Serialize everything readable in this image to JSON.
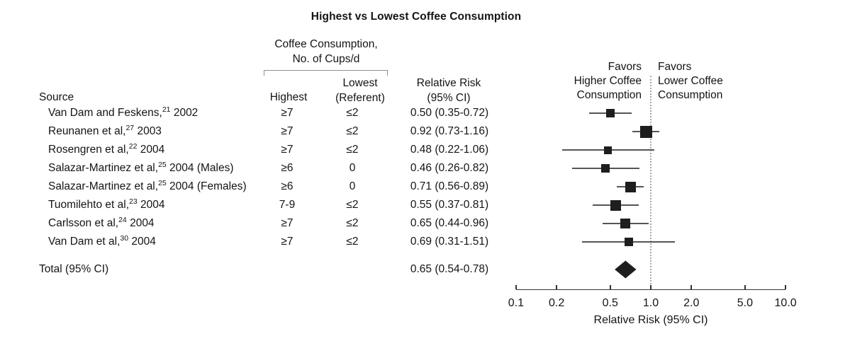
{
  "table": {
    "source_header": "Source",
    "group_header": [
      "Coffee Consumption,",
      "No. of Cups/d"
    ],
    "highest_header": "Highest",
    "lowest_header": [
      "Lowest",
      "(Referent)"
    ],
    "rr_header": [
      "Relative Risk",
      "(95% CI)"
    ]
  },
  "favors_left": [
    "Favors",
    "Higher Coffee",
    "Consumption"
  ],
  "favors_right": [
    "Favors",
    "Lower Coffee",
    "Consumption"
  ],
  "colors": {
    "text": "#141414",
    "marker": "#1e1e1e",
    "ci_line": "#555555",
    "axis": "#333333",
    "null_line_dots": "#a8a8a8"
  },
  "chart_data": {
    "type": "scatter",
    "subtype": "forest_plot",
    "title": "Highest vs Lowest Coffee Consumption",
    "xlabel": "Relative Risk (95% CI)",
    "x_scale": "log",
    "xlim": [
      0.1,
      10.0
    ],
    "x_tick_values": [
      0.1,
      0.2,
      0.5,
      1.0,
      2.0,
      5.0,
      10.0
    ],
    "x_tick_labels": [
      "0.1",
      "0.2",
      "0.5",
      "1.0",
      "2.0",
      "5.0",
      "10.0"
    ],
    "null_line": 1.0,
    "legend": "none",
    "grid": "off",
    "studies": [
      {
        "source": "Van Dam and Feskens,",
        "sup": "21",
        "tail": "2002",
        "highest": "≥7",
        "lowest": "≤2",
        "rr_text": "0.50 (0.35-0.72)",
        "rr": 0.5,
        "ci": [
          0.35,
          0.72
        ],
        "marker_size_px": 12
      },
      {
        "source": "Reunanen et al,",
        "sup": "27",
        "tail": "2003",
        "highest": "≥7",
        "lowest": "≤2",
        "rr_text": "0.92 (0.73-1.16)",
        "rr": 0.92,
        "ci": [
          0.73,
          1.16
        ],
        "marker_size_px": 17
      },
      {
        "source": "Rosengren et al,",
        "sup": "22",
        "tail": "2004",
        "highest": "≥7",
        "lowest": "≤2",
        "rr_text": "0.48 (0.22-1.06)",
        "rr": 0.48,
        "ci": [
          0.22,
          1.06
        ],
        "marker_size_px": 11
      },
      {
        "source": "Salazar-Martinez et al,",
        "sup": "25",
        "tail": "2004 (Males)",
        "highest": "≥6",
        "lowest": "0",
        "rr_text": "0.46 (0.26-0.82)",
        "rr": 0.46,
        "ci": [
          0.26,
          0.82
        ],
        "marker_size_px": 12
      },
      {
        "source": "Salazar-Martinez et al,",
        "sup": "25",
        "tail": "2004 (Females)",
        "highest": "≥6",
        "lowest": "0",
        "rr_text": "0.71 (0.56-0.89)",
        "rr": 0.71,
        "ci": [
          0.56,
          0.89
        ],
        "marker_size_px": 15
      },
      {
        "source": "Tuomilehto et al,",
        "sup": "23",
        "tail": "2004",
        "highest": "7-9",
        "lowest": "≤2",
        "rr_text": "0.55 (0.37-0.81)",
        "rr": 0.55,
        "ci": [
          0.37,
          0.81
        ],
        "marker_size_px": 15
      },
      {
        "source": "Carlsson et al,",
        "sup": "24",
        "tail": "2004",
        "highest": "≥7",
        "lowest": "≤2",
        "rr_text": "0.65 (0.44-0.96)",
        "rr": 0.65,
        "ci": [
          0.44,
          0.96
        ],
        "marker_size_px": 14
      },
      {
        "source": "Van Dam et al,",
        "sup": "30",
        "tail": "2004",
        "highest": "≥7",
        "lowest": "≤2",
        "rr_text": "0.69 (0.31-1.51)",
        "rr": 0.69,
        "ci": [
          0.31,
          1.51
        ],
        "marker_size_px": 12
      }
    ],
    "total": {
      "label": "Total (95% CI)",
      "rr_text": "0.65 (0.54-0.78)",
      "rr": 0.65,
      "ci": [
        0.54,
        0.78
      ]
    }
  }
}
